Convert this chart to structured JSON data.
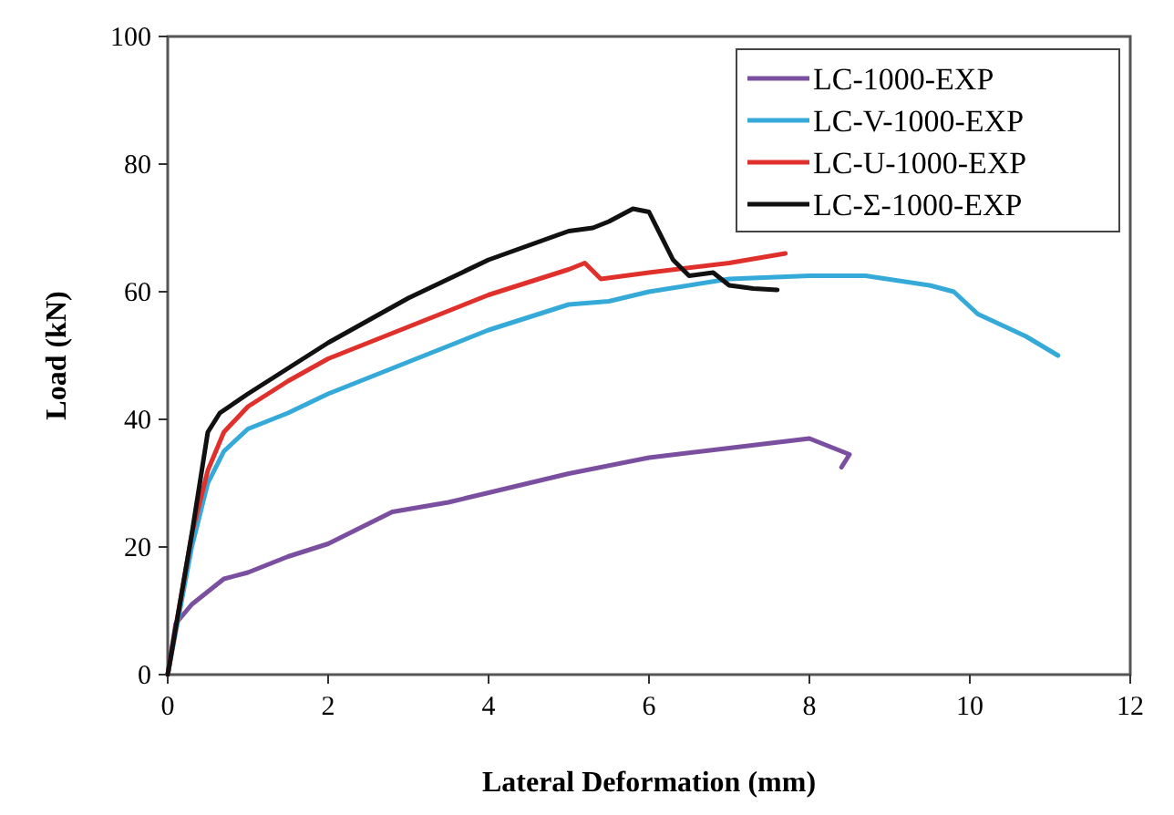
{
  "chart_data": {
    "type": "line",
    "xlabel": "Lateral Deformation (mm)",
    "ylabel": "Load (kN)",
    "xlim": [
      0,
      12
    ],
    "xticks": [
      0,
      2,
      4,
      6,
      8,
      10,
      12
    ],
    "ylim": [
      0,
      100
    ],
    "yticks": [
      0,
      20,
      40,
      60,
      80,
      100
    ],
    "grid": false,
    "legend": "top right",
    "line_style": "solid",
    "series": [
      {
        "name": "LC-1000-EXP",
        "color": "#7b4fa0",
        "x": [
          0,
          0.1,
          0.3,
          0.7,
          1,
          1.5,
          2,
          2.4,
          2.8,
          3.5,
          4,
          5,
          6,
          7,
          8,
          8.5,
          8.4
        ],
        "values": [
          0,
          8,
          11,
          15,
          16,
          18.5,
          20.5,
          23,
          25.5,
          27,
          28.5,
          31.5,
          34,
          35.5,
          37,
          34.5,
          32.5
        ]
      },
      {
        "name": "LC-V-1000-EXP",
        "color": "#35aad8",
        "x": [
          0,
          0.3,
          0.5,
          0.7,
          1,
          1.5,
          2,
          3,
          4,
          5,
          5.5,
          6,
          7,
          8,
          8.7,
          9.5,
          9.8,
          10.1,
          10.7,
          11.1
        ],
        "values": [
          0,
          20,
          30,
          35,
          38.5,
          41,
          44,
          49,
          54,
          58,
          58.5,
          60,
          62,
          62.5,
          62.5,
          61,
          60,
          56.5,
          53,
          50
        ]
      },
      {
        "name": "LC-U-1000-EXP",
        "color": "#e0302c",
        "x": [
          0,
          0.3,
          0.5,
          0.7,
          1,
          1.5,
          2,
          3,
          4,
          5,
          5.2,
          5.4,
          6,
          7,
          7.7
        ],
        "values": [
          0,
          22,
          32,
          38,
          42,
          46,
          49.5,
          54.5,
          59.5,
          63.5,
          64.5,
          62,
          63,
          64.5,
          66
        ]
      },
      {
        "name": "LC-Σ-1000-EXP",
        "color": "#111111",
        "x": [
          0,
          0.3,
          0.5,
          0.65,
          1,
          2,
          3,
          4,
          5,
          5.3,
          5.5,
          5.8,
          6,
          6.3,
          6.5,
          6.8,
          7,
          7.3,
          7.6
        ],
        "values": [
          0,
          22,
          38,
          41,
          44,
          52,
          59,
          65,
          69.5,
          70,
          71,
          73,
          72.5,
          65,
          62.5,
          63,
          61,
          60.5,
          60.3
        ]
      }
    ]
  }
}
